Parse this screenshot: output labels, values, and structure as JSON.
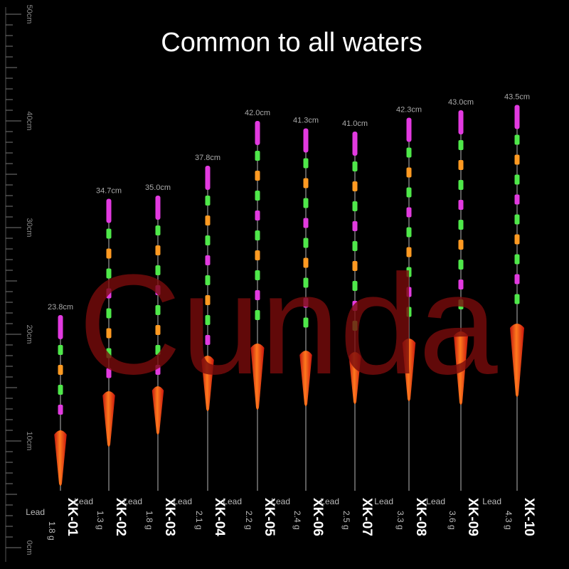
{
  "header": {
    "title": "Common to all waters"
  },
  "watermark": "Cunda",
  "ruler": {
    "labels": [
      "50cm",
      "40cm",
      "30cm",
      "20cm",
      "10cm",
      "0cm"
    ]
  },
  "lead_label": "Lead",
  "floats": [
    {
      "length": "23.8cm",
      "model": "XK-01",
      "lead": "1.8 g"
    },
    {
      "length": "34.7cm",
      "model": "XK-02",
      "lead": "1.3 g"
    },
    {
      "length": "35.0cm",
      "model": "XK-03",
      "lead": "1.8 g"
    },
    {
      "length": "37.8cm",
      "model": "XK-04",
      "lead": "2.1 g"
    },
    {
      "length": "42.0cm",
      "model": "XK-05",
      "lead": "2.2 g"
    },
    {
      "length": "41.3cm",
      "model": "XK-06",
      "lead": "2.4 g"
    },
    {
      "length": "41.0cm",
      "model": "XK-07",
      "lead": "2.5 g"
    },
    {
      "length": "42.3cm",
      "model": "XK-08",
      "lead": "3.3 g"
    },
    {
      "length": "43.0cm",
      "model": "XK-09",
      "lead": "3.6 g"
    },
    {
      "length": "43.5cm",
      "model": "XK-10",
      "lead": "4.3 g"
    }
  ]
}
